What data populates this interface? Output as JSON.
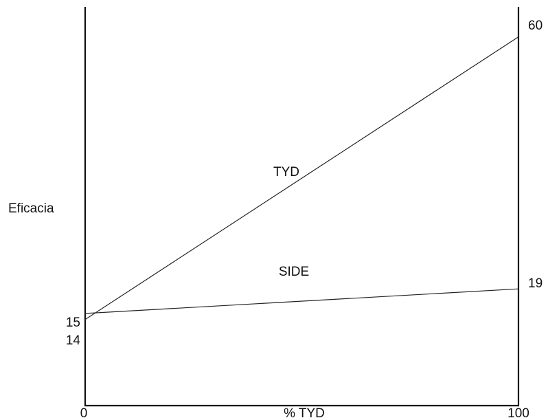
{
  "chart_data": {
    "type": "line",
    "title": "",
    "xlabel": "% TYD",
    "ylabel": "Eficacia",
    "xlim": [
      0,
      100
    ],
    "ylim": [
      0,
      66
    ],
    "grid": false,
    "x_ticks": [
      "0",
      "100"
    ],
    "series": [
      {
        "name": "TYD",
        "x": [
          0,
          100
        ],
        "values": [
          14,
          60
        ],
        "color": "#222222"
      },
      {
        "name": "SIDE",
        "x": [
          0,
          100
        ],
        "values": [
          15,
          19
        ],
        "color": "#222222"
      }
    ],
    "endpoint_labels": {
      "left": [
        "15",
        "14"
      ],
      "right": [
        "60",
        "19"
      ]
    }
  }
}
